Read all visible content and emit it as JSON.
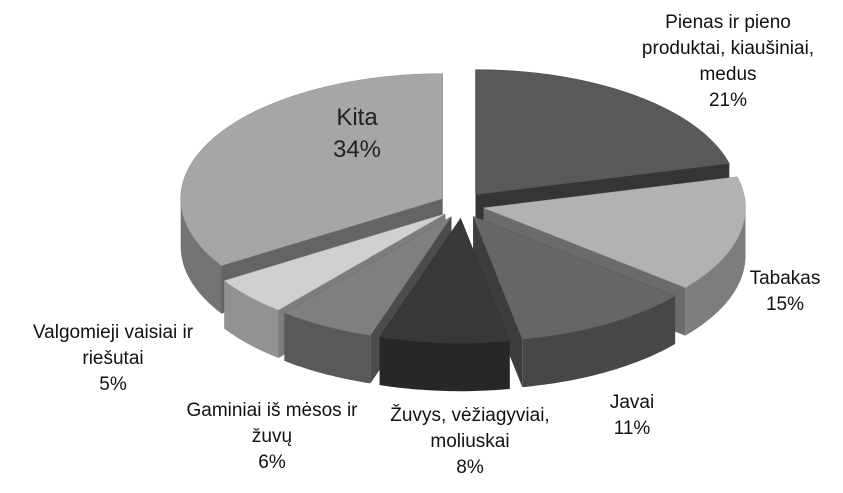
{
  "chart_data": {
    "type": "pie3d",
    "categories": [
      "Pienas ir pieno produktai, kiaušiniai, medus",
      "Tabakas",
      "Javai",
      "Žuvys, vėžiagyviai, moliuskai",
      "Gaminiai iš mėsos ir žuvų",
      "Valgomieji vaisiai ir riešutai",
      "Kita"
    ],
    "values": [
      21,
      15,
      11,
      8,
      6,
      5,
      34
    ],
    "value_labels": [
      "21%",
      "15%",
      "11%",
      "8%",
      "6%",
      "5%",
      "34%"
    ],
    "colors": [
      "#595959",
      "#b2b2b2",
      "#666666",
      "#383838",
      "#7f7f7f",
      "#d0d0d0",
      "#a6a6a6"
    ]
  }
}
